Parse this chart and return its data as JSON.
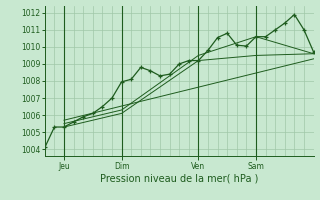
{
  "background_color": "#c8e8d0",
  "grid_color": "#a0c8a8",
  "line_color": "#1e5c1e",
  "title": "Pression niveau de la mer( hPa )",
  "ylabel_ticks": [
    1004,
    1005,
    1006,
    1007,
    1008,
    1009,
    1010,
    1011,
    1012
  ],
  "ylim": [
    1003.6,
    1012.4
  ],
  "xlim": [
    0,
    28
  ],
  "xtick_positions": [
    2,
    8,
    16,
    22
  ],
  "xtick_labels": [
    "Jeu",
    "Dim",
    "Ven",
    "Sam"
  ],
  "vline_positions": [
    2,
    8,
    16,
    22
  ],
  "series_main": [
    [
      0,
      1004.1
    ],
    [
      1,
      1005.3
    ],
    [
      2,
      1005.3
    ],
    [
      3,
      1005.6
    ],
    [
      4,
      1005.9
    ],
    [
      5,
      1006.1
    ],
    [
      6,
      1006.5
    ],
    [
      7,
      1007.0
    ],
    [
      8,
      1007.95
    ],
    [
      9,
      1008.1
    ],
    [
      10,
      1008.8
    ],
    [
      11,
      1008.6
    ],
    [
      12,
      1008.3
    ],
    [
      13,
      1008.4
    ],
    [
      14,
      1009.0
    ],
    [
      15,
      1009.2
    ],
    [
      16,
      1009.2
    ],
    [
      17,
      1009.8
    ],
    [
      18,
      1010.55
    ],
    [
      19,
      1010.8
    ],
    [
      20,
      1010.1
    ],
    [
      21,
      1010.05
    ],
    [
      22,
      1010.6
    ],
    [
      23,
      1010.6
    ],
    [
      24,
      1011.0
    ],
    [
      25,
      1011.4
    ],
    [
      26,
      1011.9
    ],
    [
      27,
      1011.0
    ],
    [
      28,
      1009.7
    ]
  ],
  "series2": [
    [
      2,
      1005.3
    ],
    [
      8,
      1006.1
    ],
    [
      16,
      1009.2
    ],
    [
      22,
      1009.5
    ],
    [
      28,
      1009.6
    ]
  ],
  "series3": [
    [
      2,
      1005.5
    ],
    [
      8,
      1006.3
    ],
    [
      16,
      1009.5
    ],
    [
      22,
      1010.6
    ],
    [
      28,
      1009.6
    ]
  ],
  "series4": [
    [
      2,
      1005.7
    ],
    [
      28,
      1009.3
    ]
  ]
}
